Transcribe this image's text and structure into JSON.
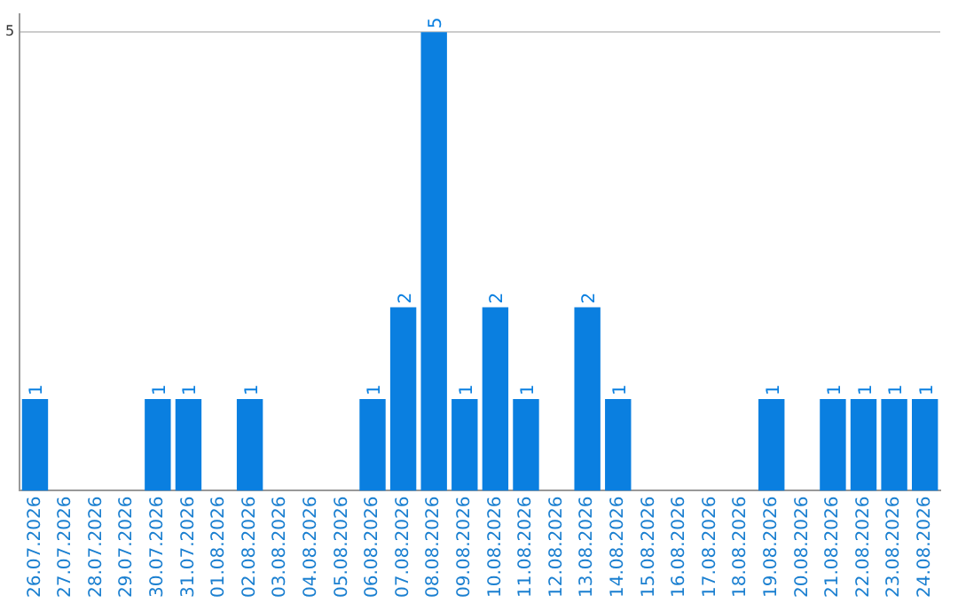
{
  "chart_data": {
    "type": "bar",
    "categories": [
      "26.07.2026",
      "27.07.2026",
      "28.07.2026",
      "29.07.2026",
      "30.07.2026",
      "31.07.2026",
      "01.08.2026",
      "02.08.2026",
      "03.08.2026",
      "04.08.2026",
      "05.08.2026",
      "06.08.2026",
      "07.08.2026",
      "08.08.2026",
      "09.08.2026",
      "10.08.2026",
      "11.08.2026",
      "12.08.2026",
      "13.08.2026",
      "14.08.2026",
      "15.08.2026",
      "16.08.2026",
      "17.08.2026",
      "18.08.2026",
      "19.08.2026",
      "20.08.2026",
      "21.08.2026",
      "22.08.2026",
      "23.08.2026",
      "24.08.2026"
    ],
    "values": [
      1,
      0,
      0,
      0,
      1,
      1,
      0,
      1,
      0,
      0,
      0,
      1,
      2,
      5,
      1,
      2,
      1,
      0,
      2,
      1,
      0,
      0,
      0,
      0,
      1,
      0,
      1,
      1,
      1,
      1
    ],
    "value_labels": [
      "1",
      null,
      null,
      null,
      "1",
      "1",
      null,
      "1",
      null,
      null,
      null,
      "1",
      "2",
      "5",
      "1",
      "2",
      "1",
      null,
      "2",
      "1",
      null,
      null,
      null,
      null,
      "1",
      null,
      "1",
      "1",
      "1",
      "1"
    ],
    "color": "#0a7fe0",
    "ylim": [
      0,
      5.2
    ],
    "yticks": [
      5
    ],
    "grid": "y"
  }
}
